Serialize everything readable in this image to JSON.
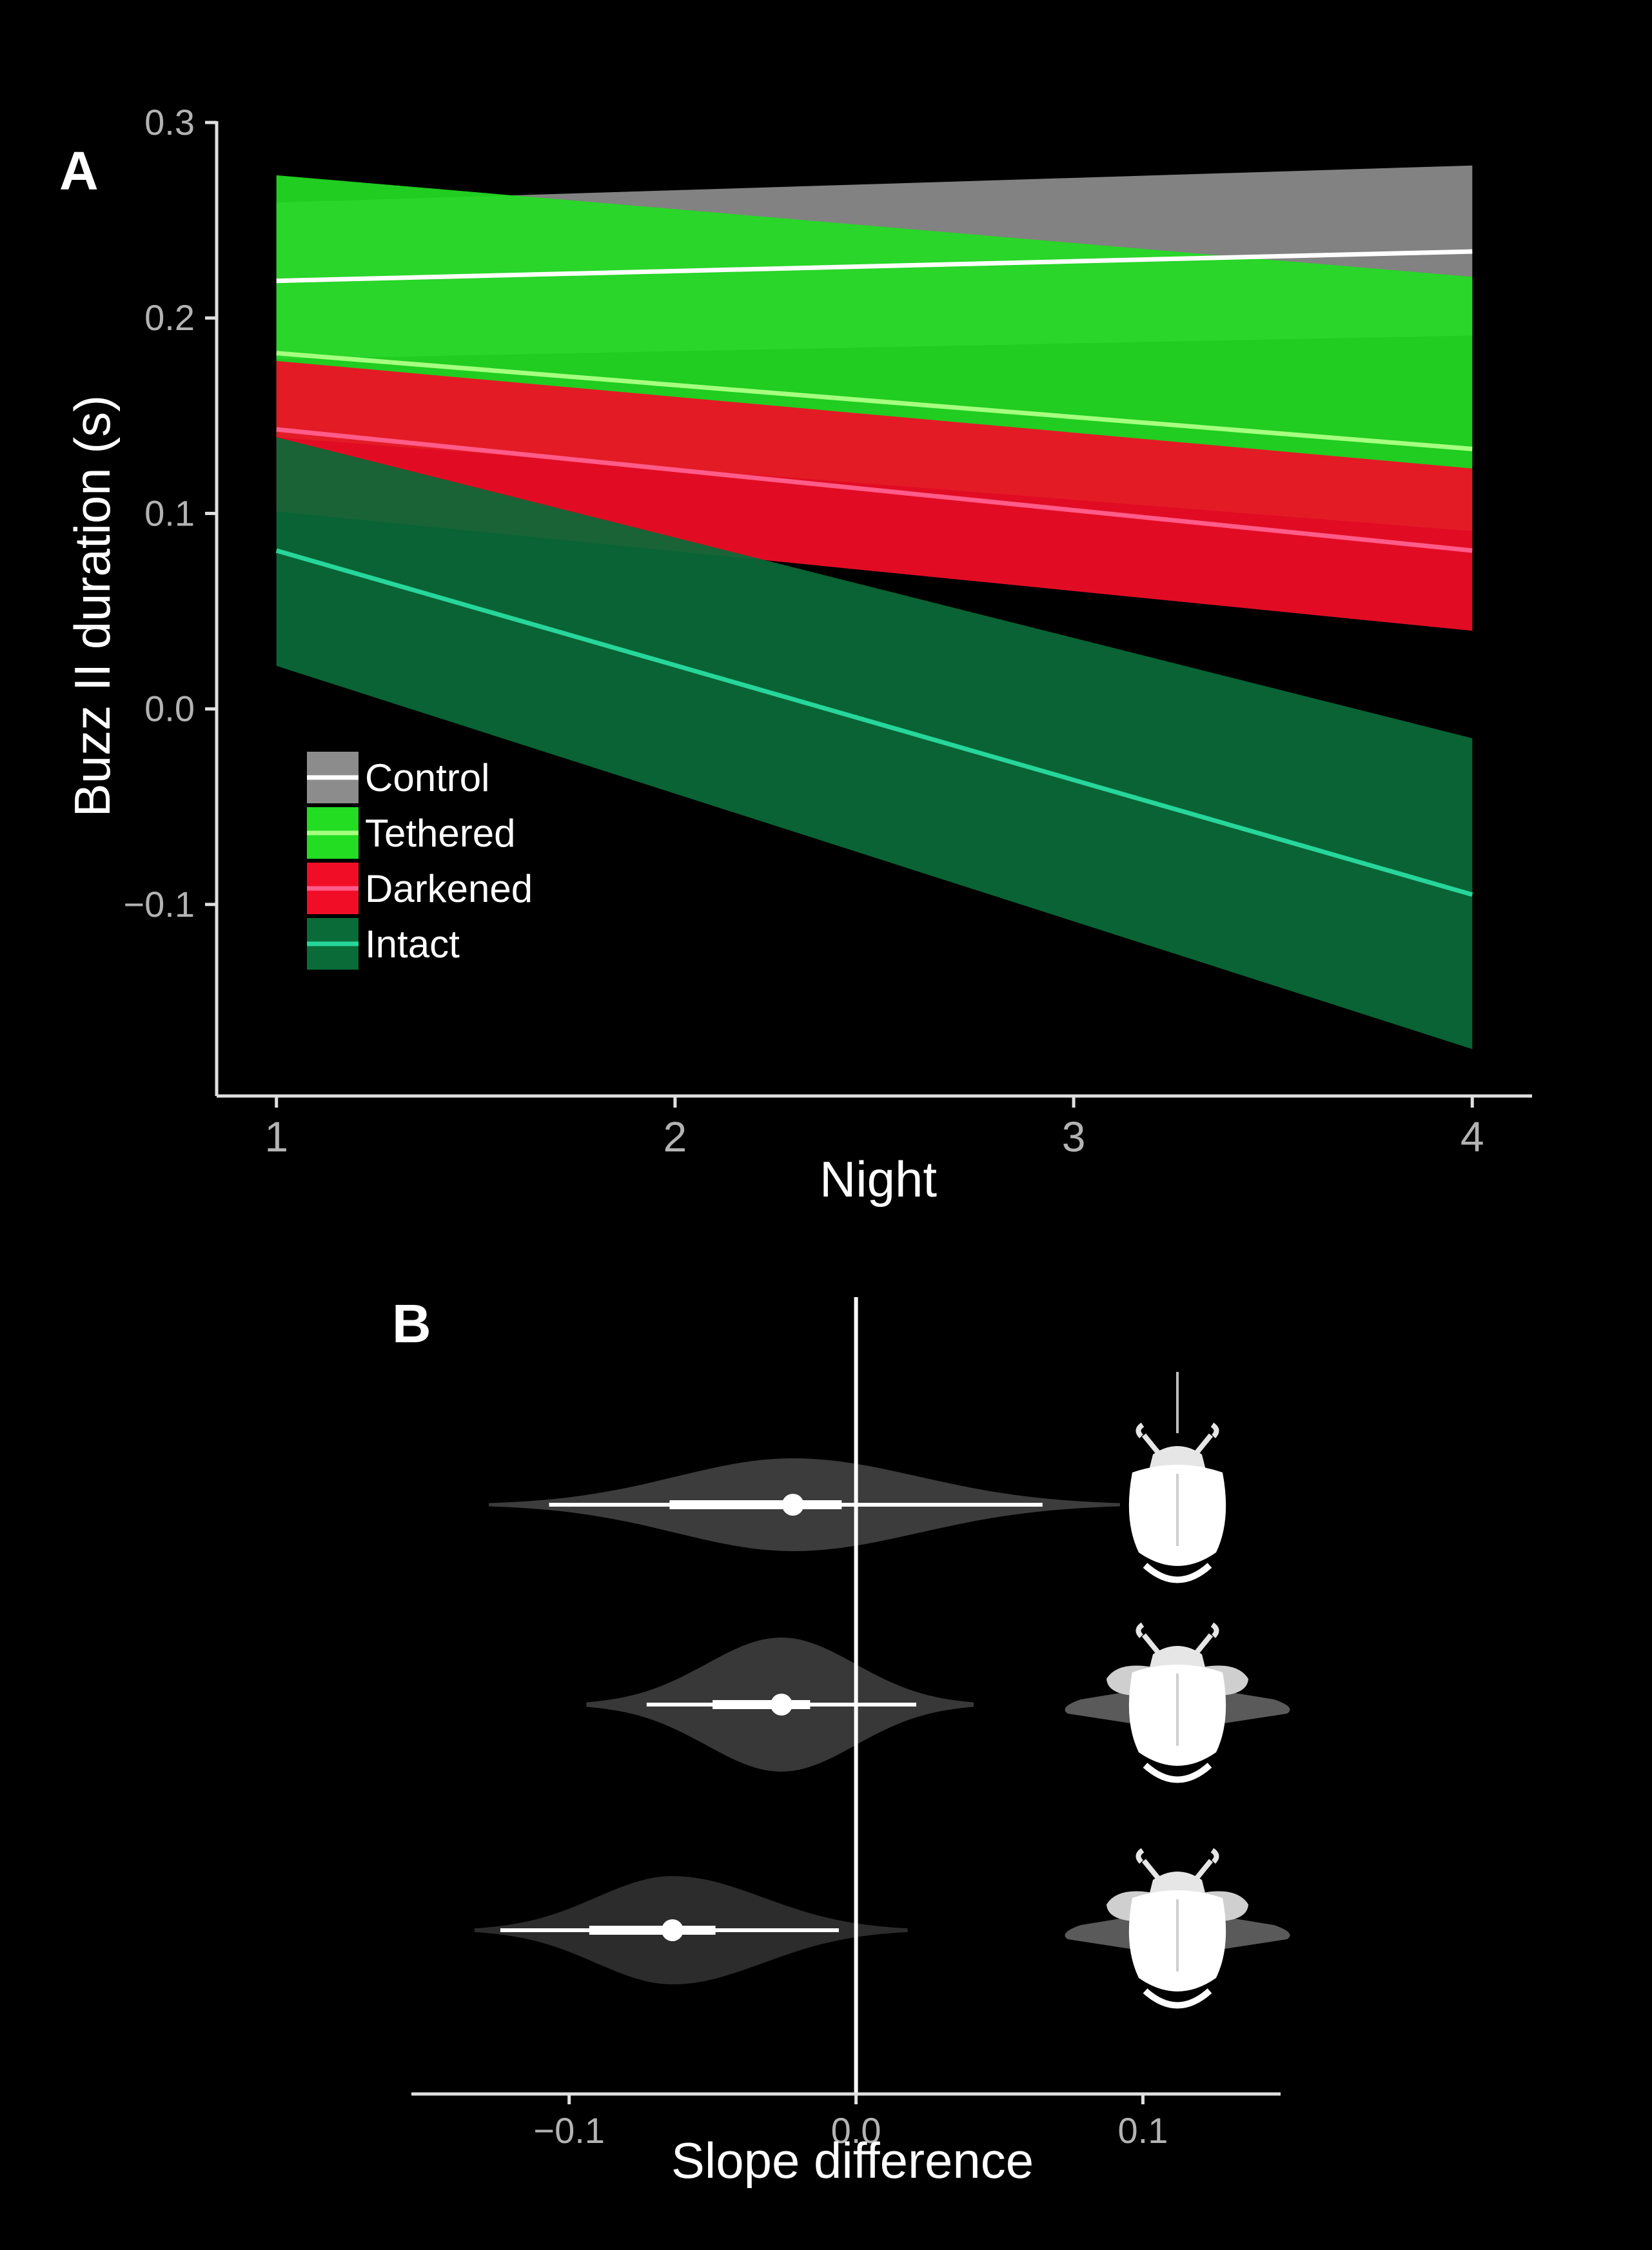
{
  "chart_data": [
    {
      "panel_label": "A",
      "type": "line",
      "xlabel": "Night",
      "ylabel": "Buzz II duration (s)",
      "x": [
        1,
        4
      ],
      "xticks": [
        "1",
        "2",
        "3",
        "4"
      ],
      "yticks": [
        "−0.1",
        "0.0",
        "0.1",
        "0.2",
        "0.3"
      ],
      "xlim": [
        0.85,
        4.15
      ],
      "ylim": [
        -0.198,
        0.3
      ],
      "legend_position": "bottom-left",
      "grid": false,
      "series": [
        {
          "name": "Control",
          "line": [
            0.219,
            0.234
          ],
          "lower": [
            0.179,
            0.191
          ],
          "upper": [
            0.259,
            0.278
          ],
          "fill": "#8c8c8c",
          "stroke": "#ffffff"
        },
        {
          "name": "Tethered",
          "line": [
            0.182,
            0.133
          ],
          "lower": [
            0.139,
            0.091
          ],
          "upper": [
            0.273,
            0.221
          ],
          "fill": "#22dd22",
          "stroke": "#a6ff80"
        },
        {
          "name": "Darkened",
          "line": [
            0.143,
            0.081
          ],
          "lower": [
            0.101,
            0.04
          ],
          "upper": [
            0.178,
            0.123
          ],
          "fill": "#f20d26",
          "stroke": "#ff5c8a"
        },
        {
          "name": "Intact",
          "line": [
            0.081,
            -0.095
          ],
          "lower": [
            0.022,
            -0.174
          ],
          "upper": [
            0.139,
            -0.015
          ],
          "fill": "#0a6b38",
          "stroke": "#27d69a"
        }
      ]
    },
    {
      "panel_label": "B",
      "type": "scatter",
      "xlabel": "Slope difference",
      "xticks": [
        "−0.1",
        "0.0",
        "0.1"
      ],
      "xlim": [
        -0.155,
        0.148
      ],
      "reference_line": 0.0,
      "grid": false,
      "rows": [
        {
          "icon": "beetle-wings-folded-icon",
          "median": -0.022,
          "inner": [
            -0.065,
            -0.005
          ],
          "outer": [
            -0.107,
            0.065
          ],
          "violin": [
            -0.128,
            0.092
          ],
          "violin_peak": -0.022,
          "violin_width": 0.9,
          "fill": "#3c3c3c"
        },
        {
          "icon": "beetle-wings-spread-icon",
          "median": -0.026,
          "inner": [
            -0.05,
            -0.016
          ],
          "outer": [
            -0.073,
            0.021
          ],
          "violin": [
            -0.094,
            0.041
          ],
          "violin_peak": -0.026,
          "violin_width": 1.3,
          "fill": "#383838"
        },
        {
          "icon": "beetle-wings-spread-icon",
          "median": -0.064,
          "inner": [
            -0.093,
            -0.049
          ],
          "outer": [
            -0.124,
            -0.006
          ],
          "violin": [
            -0.133,
            0.018
          ],
          "violin_peak": -0.064,
          "violin_width": 1.05,
          "fill": "#2c2c2c"
        }
      ]
    }
  ]
}
